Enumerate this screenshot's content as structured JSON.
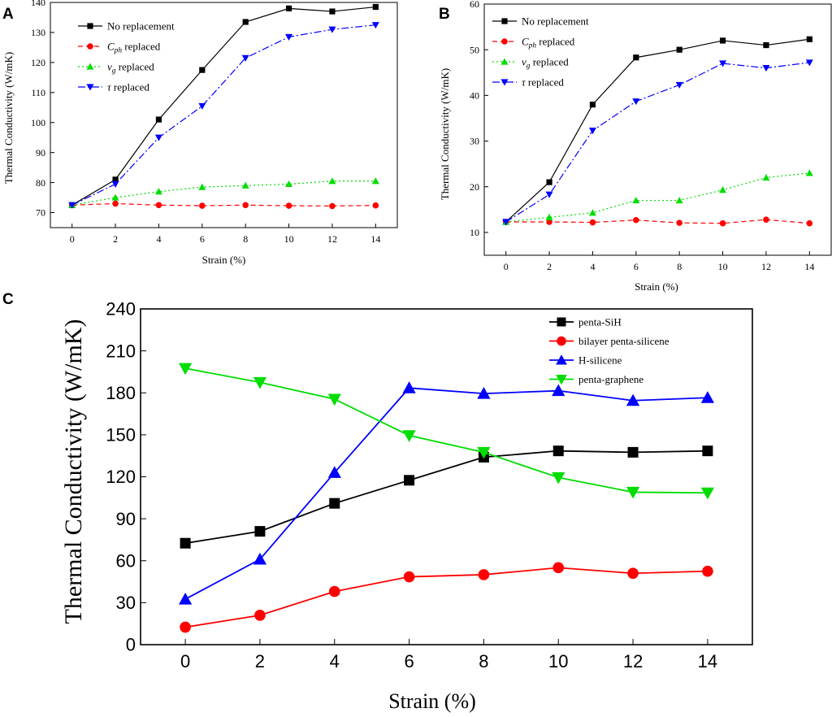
{
  "chart_data": [
    {
      "panel": "A",
      "type": "line",
      "xlabel": "Strain (%)",
      "ylabel": "Thermal Conductivity (W/mK)",
      "xlim": [
        -1,
        15
      ],
      "ylim": [
        65,
        140
      ],
      "xticks": [
        0,
        2,
        4,
        6,
        8,
        10,
        12,
        14
      ],
      "yticks": [
        70,
        80,
        90,
        100,
        110,
        120,
        130,
        140
      ],
      "x": [
        0,
        2,
        4,
        6,
        8,
        10,
        12,
        14
      ],
      "series": [
        {
          "name": "No replacement",
          "color": "#000000",
          "marker": "square",
          "dash": "solid",
          "values": [
            72.5,
            81,
            101,
            117.5,
            133.5,
            138,
            137,
            138.5
          ]
        },
        {
          "name": "C_ph replaced",
          "label_main": "C",
          "label_sub": "ph",
          "label_rest": " replaced",
          "color": "#ff0000",
          "marker": "circle",
          "dash": "dashed",
          "values": [
            72.5,
            73,
            72.5,
            72.3,
            72.5,
            72.3,
            72.2,
            72.4
          ]
        },
        {
          "name": "v_g replaced",
          "label_main": "v",
          "label_sub": "g",
          "label_rest": " replaced",
          "color": "#00dd00",
          "marker": "triangle-up",
          "dash": "dotted",
          "values": [
            72.5,
            75,
            77,
            78.5,
            79,
            79.5,
            80.5,
            80.5
          ]
        },
        {
          "name": "τ replaced",
          "label_main": "τ",
          "label_sub": "",
          "label_rest": " replaced",
          "color": "#0000ff",
          "marker": "triangle-down",
          "dash": "dashdot",
          "values": [
            72.5,
            79.5,
            95,
            105.5,
            121.5,
            128.5,
            131,
            132.5
          ]
        }
      ]
    },
    {
      "panel": "B",
      "type": "line",
      "xlabel": "Strain (%)",
      "ylabel": "Thermal Conductivity (W/mK)",
      "xlim": [
        -1,
        15
      ],
      "ylim": [
        5,
        60
      ],
      "xticks": [
        0,
        2,
        4,
        6,
        8,
        10,
        12,
        14
      ],
      "yticks": [
        10,
        20,
        30,
        40,
        50,
        60
      ],
      "x": [
        0,
        2,
        4,
        6,
        8,
        10,
        12,
        14
      ],
      "series": [
        {
          "name": "No replacement",
          "color": "#000000",
          "marker": "square",
          "dash": "solid",
          "values": [
            12.3,
            21,
            38,
            48.3,
            50,
            52,
            51,
            52.3
          ]
        },
        {
          "name": "C_ph replaced",
          "label_main": "C",
          "label_sub": "ph",
          "label_rest": " replaced",
          "color": "#ff0000",
          "marker": "circle",
          "dash": "dashed",
          "values": [
            12.3,
            12.3,
            12.2,
            12.7,
            12.1,
            12,
            12.8,
            12
          ]
        },
        {
          "name": "v_g replaced",
          "label_main": "v",
          "label_sub": "g",
          "label_rest": " replaced",
          "color": "#00dd00",
          "marker": "triangle-up",
          "dash": "dotted",
          "values": [
            12.3,
            13.3,
            14.3,
            17,
            17,
            19.3,
            22,
            23
          ]
        },
        {
          "name": "τ replaced",
          "label_main": "τ",
          "label_sub": "",
          "label_rest": " replaced",
          "color": "#0000ff",
          "marker": "triangle-down",
          "dash": "dashdot",
          "values": [
            12.3,
            18.3,
            32.3,
            38.7,
            42.3,
            47,
            46,
            47.2
          ]
        }
      ]
    },
    {
      "panel": "C",
      "type": "line",
      "xlabel": "Strain (%)",
      "ylabel": "Thermal Conductivity (W/mK)",
      "xlim": [
        -1.2,
        15.2
      ],
      "ylim": [
        0,
        240
      ],
      "xticks": [
        0,
        2,
        4,
        6,
        8,
        10,
        12,
        14
      ],
      "yticks": [
        0,
        30,
        60,
        90,
        120,
        150,
        180,
        210,
        240
      ],
      "x": [
        0,
        2,
        4,
        6,
        8,
        10,
        12,
        14
      ],
      "series": [
        {
          "name": "penta-SiH",
          "color": "#000000",
          "marker": "square",
          "dash": "solid",
          "values": [
            72.5,
            81,
            101,
            117.5,
            134,
            138.5,
            137.5,
            138.5
          ]
        },
        {
          "name": "bilayer penta-silicene",
          "color": "#ff0000",
          "marker": "circle",
          "dash": "solid",
          "values": [
            12.5,
            21,
            38,
            48.5,
            50,
            55,
            51,
            52.5
          ]
        },
        {
          "name": "H-silicene",
          "color": "#0000ff",
          "marker": "triangle-up",
          "dash": "solid",
          "values": [
            32.5,
            61,
            123,
            183.5,
            179.5,
            181.5,
            174.5,
            176.5
          ]
        },
        {
          "name": "penta-graphene",
          "color": "#00dd00",
          "marker": "triangle-down",
          "dash": "solid",
          "values": [
            197.5,
            187.5,
            175.5,
            149.5,
            137.5,
            119.5,
            109,
            108.5
          ]
        }
      ]
    }
  ]
}
